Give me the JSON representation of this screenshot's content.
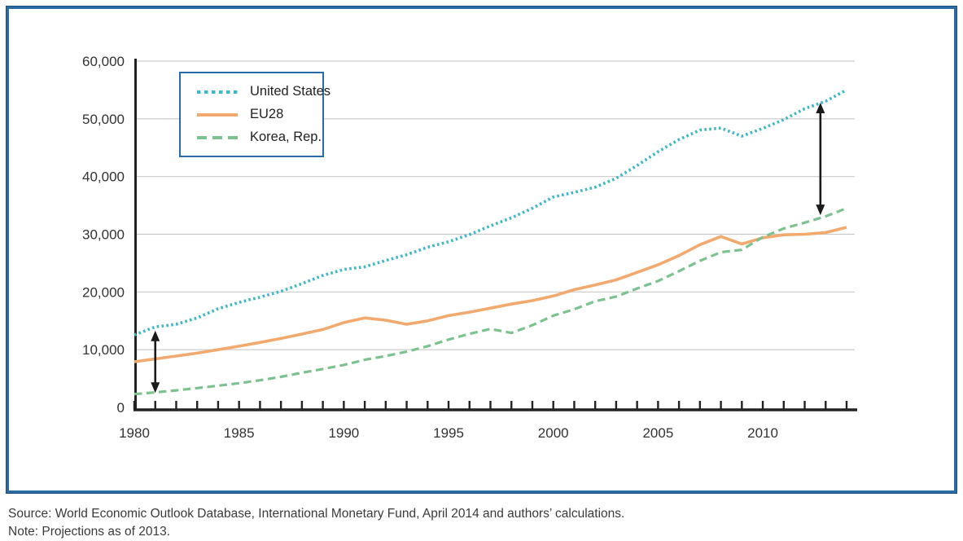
{
  "frame": {
    "border_color": "#2a6aa5"
  },
  "chart_data": {
    "type": "line",
    "title": "",
    "xlabel": "",
    "ylabel": "",
    "ylim": [
      0,
      60000
    ],
    "ytick_interval": 10000,
    "ytick_labels": [
      "0",
      "10,000",
      "20,000",
      "30,000",
      "40,000",
      "50,000",
      "60,000"
    ],
    "xtick_years": [
      1980,
      1985,
      1990,
      1995,
      2000,
      2005,
      2010
    ],
    "xtick_labels": [
      "1980",
      "1985",
      "1990",
      "1995",
      "2000",
      "2005",
      "2010"
    ],
    "grid": "horizontal",
    "legend_position": "top-left",
    "x": [
      1980,
      1981,
      1982,
      1983,
      1984,
      1985,
      1986,
      1987,
      1988,
      1989,
      1990,
      1991,
      1992,
      1993,
      1994,
      1995,
      1996,
      1997,
      1998,
      1999,
      2000,
      2001,
      2002,
      2003,
      2004,
      2005,
      2006,
      2007,
      2008,
      2009,
      2010,
      2011,
      2012,
      2013,
      2014
    ],
    "series": [
      {
        "name": "United States",
        "style": "dotted",
        "color": "#3eb7c9",
        "values": [
          12550,
          13950,
          14400,
          15500,
          17100,
          18200,
          19100,
          20100,
          21450,
          22850,
          23900,
          24350,
          25450,
          26450,
          27750,
          28700,
          29950,
          31450,
          32850,
          34500,
          36450,
          37250,
          38150,
          39700,
          41900,
          44300,
          46400,
          48050,
          48400,
          47000,
          48350,
          49850,
          51750,
          53050,
          55000
        ]
      },
      {
        "name": "EU28",
        "style": "solid",
        "color": "#f2a96e",
        "values": [
          7900,
          8400,
          8900,
          9400,
          10000,
          10600,
          11250,
          11950,
          12700,
          13500,
          14700,
          15500,
          15100,
          14400,
          15000,
          15900,
          16500,
          17200,
          17900,
          18500,
          19300,
          20400,
          21200,
          22100,
          23400,
          24700,
          26300,
          28200,
          29600,
          28300,
          29400,
          29900,
          30000,
          30300,
          31200
        ]
      },
      {
        "name": "Korea, Rep.",
        "style": "dashed",
        "color": "#7cc28f",
        "values": [
          2300,
          2600,
          2950,
          3350,
          3750,
          4200,
          4700,
          5300,
          6000,
          6650,
          7350,
          8250,
          8900,
          9650,
          10600,
          11750,
          12750,
          13600,
          12900,
          14250,
          15900,
          17000,
          18400,
          19200,
          20600,
          21900,
          23600,
          25400,
          26900,
          27300,
          29500,
          31000,
          32000,
          33100,
          34500
        ]
      }
    ],
    "annotations": [
      {
        "type": "double-arrow",
        "year": 1981,
        "from": 2500,
        "to": 13300
      },
      {
        "type": "double-arrow",
        "year": 2012.75,
        "from": 33300,
        "to": 52800
      }
    ]
  },
  "legend": {
    "items": [
      {
        "label": "United States"
      },
      {
        "label": "EU28"
      },
      {
        "label": "Korea, Rep."
      }
    ]
  },
  "footer": {
    "source": "Source: World Economic Outlook Database, International Monetary Fund, April 2014 and authors’ calculations.",
    "note": "Note: Projections as of 2013."
  }
}
